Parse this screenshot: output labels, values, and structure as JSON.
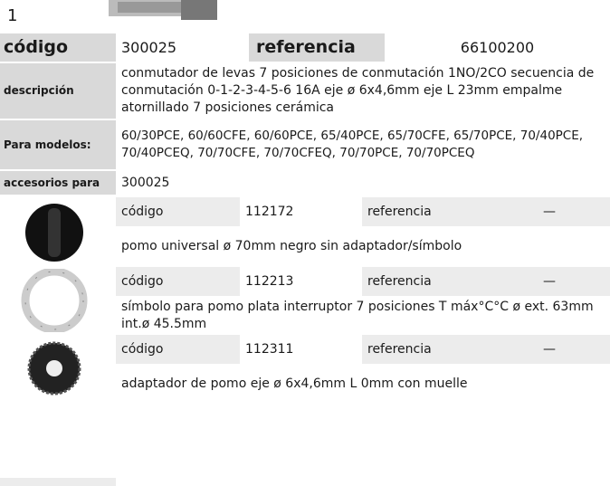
{
  "page_number": "1",
  "product": {
    "codigo_label": "código",
    "codigo": "300025",
    "referencia_label": "referencia",
    "referencia": "66100200",
    "descripcion_label": "descripción",
    "descripcion": "conmutador de levas  7 posiciones de conmutación 1NO/2CO secuencia de conmutación 0-1-2-3-4-5-6 16A eje ø 6x4,6mm eje L 23mm empalme atornillado 7 posiciones cerámica",
    "modelos_label": "Para modelos:",
    "modelos": "60/30PCE, 60/60CFE, 60/60PCE, 65/40PCE, 65/70CFE, 65/70PCE, 70/40PCE, 70/40PCEQ, 70/70CFE, 70/70CFEQ, 70/70PCE, 70/70PCEQ",
    "accesorios_label": "accesorios para",
    "accesorios_for": "300025"
  },
  "accessories": [
    {
      "codigo_label": "código",
      "codigo": "112172",
      "referencia_label": "referencia",
      "referencia": "—",
      "description": "pomo  universal ø 70mm negro sin adaptador/símbolo"
    },
    {
      "codigo_label": "código",
      "codigo": "112213",
      "referencia_label": "referencia",
      "referencia": "—",
      "description": "símbolo para pomo  plata interruptor 7 posiciones T máx°C°C ø ext. 63mm int.ø 45.5mm"
    },
    {
      "codigo_label": "código",
      "codigo": "112311",
      "referencia_label": "referencia",
      "referencia": "—",
      "description": "adaptador de pomo  eje ø 6x4,6mm L 0mm con muelle"
    }
  ]
}
